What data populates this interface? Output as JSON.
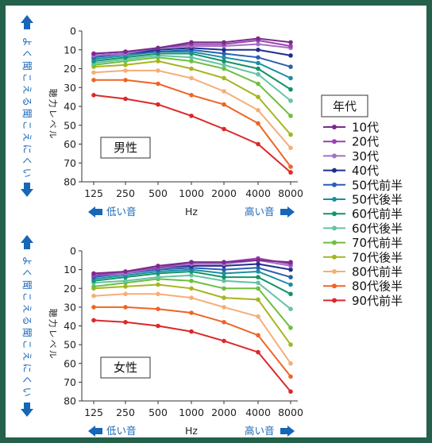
{
  "side_labels": {
    "better": "よく聞こえる",
    "worse": "聞こえにくい"
  },
  "direction_labels": {
    "low": "低い音",
    "high": "高い音"
  },
  "legend": {
    "title": "年代",
    "entries": [
      {
        "label": "10代",
        "color": "#7b2a8e"
      },
      {
        "label": "20代",
        "color": "#9a42ae"
      },
      {
        "label": "30代",
        "color": "#a36fc7"
      },
      {
        "label": "40代",
        "color": "#1e2f8a"
      },
      {
        "label": "50代前半",
        "color": "#2a5fb2"
      },
      {
        "label": "50代後半",
        "color": "#1c8ea2"
      },
      {
        "label": "60代前半",
        "color": "#15936a"
      },
      {
        "label": "60代後半",
        "color": "#62c4a2"
      },
      {
        "label": "70代前半",
        "color": "#6dbf3e"
      },
      {
        "label": "70代後半",
        "color": "#a6b522"
      },
      {
        "label": "80代前半",
        "color": "#f6ad78"
      },
      {
        "label": "80代後半",
        "color": "#ee6525"
      },
      {
        "label": "90代前半",
        "color": "#dc2828"
      }
    ]
  },
  "chart_data": [
    {
      "type": "line",
      "title": "男性",
      "xlabel": "Hz",
      "ylabel": "聴力レベル",
      "categories": [
        "125",
        "250",
        "500",
        "1000",
        "2000",
        "4000",
        "8000"
      ],
      "y_ticks": [
        "0",
        "10",
        "20",
        "30",
        "40",
        "50",
        "60",
        "70",
        "80"
      ],
      "ylim": [
        0,
        80
      ],
      "y_inverted": true,
      "series": [
        {
          "name": "10代",
          "color": "#7b2a8e",
          "values": [
            12,
            11,
            9,
            6,
            6,
            4,
            6
          ]
        },
        {
          "name": "20代",
          "color": "#9a42ae",
          "values": [
            12,
            11,
            9,
            7,
            7,
            5,
            8
          ]
        },
        {
          "name": "30代",
          "color": "#a36fc7",
          "values": [
            13,
            12,
            9,
            8,
            8,
            7,
            9
          ]
        },
        {
          "name": "40代",
          "color": "#1e2f8a",
          "values": [
            13,
            12,
            10,
            9,
            10,
            10,
            13
          ]
        },
        {
          "name": "50代前半",
          "color": "#2a5fb2",
          "values": [
            14,
            12,
            11,
            10,
            12,
            14,
            19
          ]
        },
        {
          "name": "50代後半",
          "color": "#1c8ea2",
          "values": [
            15,
            13,
            11,
            11,
            14,
            17,
            25
          ]
        },
        {
          "name": "60代前半",
          "color": "#15936a",
          "values": [
            16,
            14,
            12,
            12,
            16,
            20,
            31
          ]
        },
        {
          "name": "60代後半",
          "color": "#62c4a2",
          "values": [
            17,
            15,
            13,
            14,
            18,
            23,
            37
          ]
        },
        {
          "name": "70代前半",
          "color": "#6dbf3e",
          "values": [
            18,
            16,
            14,
            16,
            20,
            28,
            45
          ]
        },
        {
          "name": "70代後半",
          "color": "#a6b522",
          "values": [
            19,
            18,
            16,
            20,
            25,
            35,
            55
          ]
        },
        {
          "name": "80代前半",
          "color": "#f6ad78",
          "values": [
            22,
            21,
            21,
            25,
            32,
            42,
            62
          ]
        },
        {
          "name": "80代後半",
          "color": "#ee6525",
          "values": [
            26,
            26,
            28,
            34,
            39,
            49,
            72
          ]
        },
        {
          "name": "90代前半",
          "color": "#dc2828",
          "values": [
            34,
            36,
            39,
            45,
            52,
            60,
            75
          ]
        }
      ]
    },
    {
      "type": "line",
      "title": "女性",
      "xlabel": "Hz",
      "ylabel": "聴力レベル",
      "categories": [
        "125",
        "250",
        "500",
        "1000",
        "2000",
        "4000",
        "8000"
      ],
      "y_ticks": [
        "0",
        "10",
        "20",
        "30",
        "40",
        "50",
        "60",
        "70",
        "80"
      ],
      "ylim": [
        0,
        80
      ],
      "y_inverted": true,
      "series": [
        {
          "name": "10代",
          "color": "#7b2a8e",
          "values": [
            12,
            11,
            8,
            6,
            6,
            5,
            6
          ]
        },
        {
          "name": "20代",
          "color": "#9a42ae",
          "values": [
            13,
            11,
            9,
            6,
            6,
            4,
            7
          ]
        },
        {
          "name": "30代",
          "color": "#a36fc7",
          "values": [
            13,
            12,
            9,
            7,
            7,
            5,
            8
          ]
        },
        {
          "name": "40代",
          "color": "#1e2f8a",
          "values": [
            13,
            12,
            9,
            8,
            8,
            7,
            10
          ]
        },
        {
          "name": "50代前半",
          "color": "#2a5fb2",
          "values": [
            14,
            12,
            10,
            9,
            10,
            9,
            14
          ]
        },
        {
          "name": "50代後半",
          "color": "#1c8ea2",
          "values": [
            15,
            13,
            11,
            10,
            12,
            11,
            18
          ]
        },
        {
          "name": "60代前半",
          "color": "#15936a",
          "values": [
            16,
            14,
            12,
            11,
            14,
            14,
            23
          ]
        },
        {
          "name": "60代後半",
          "color": "#62c4a2",
          "values": [
            17,
            16,
            14,
            13,
            16,
            17,
            31
          ]
        },
        {
          "name": "70代前半",
          "color": "#6dbf3e",
          "values": [
            19,
            17,
            15,
            16,
            20,
            20,
            41
          ]
        },
        {
          "name": "70代後半",
          "color": "#a6b522",
          "values": [
            20,
            19,
            18,
            20,
            25,
            26,
            50
          ]
        },
        {
          "name": "80代前半",
          "color": "#f6ad78",
          "values": [
            24,
            23,
            23,
            25,
            30,
            35,
            60
          ]
        },
        {
          "name": "80代後半",
          "color": "#ee6525",
          "values": [
            30,
            30,
            31,
            33,
            38,
            45,
            67
          ]
        },
        {
          "name": "90代前半",
          "color": "#dc2828",
          "values": [
            37,
            38,
            40,
            43,
            48,
            54,
            75
          ]
        }
      ]
    }
  ]
}
